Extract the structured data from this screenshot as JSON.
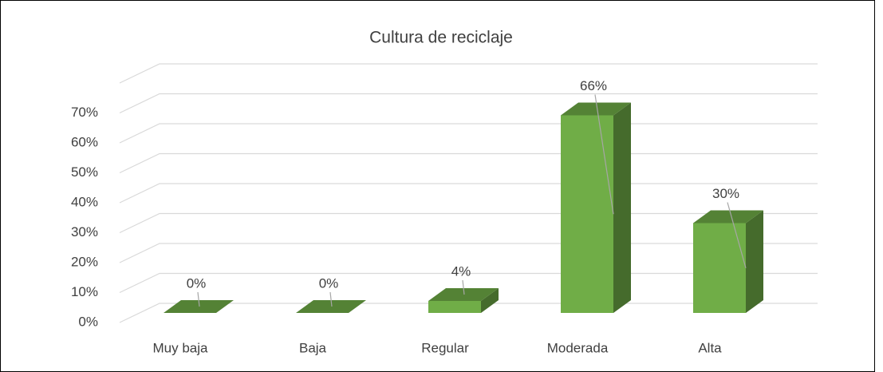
{
  "chart_data": {
    "type": "bar3d",
    "title": "Cultura de reciclaje",
    "categories": [
      "Muy baja",
      "Baja",
      "Regular",
      "Moderada",
      "Alta"
    ],
    "values": [
      0,
      0,
      4,
      66,
      30
    ],
    "value_labels": [
      "0%",
      "0%",
      "4%",
      "66%",
      "30%"
    ],
    "color": "#70ad47",
    "ylim": [
      0,
      80
    ],
    "yticks": [
      {
        "value": 0,
        "label": "0%"
      },
      {
        "value": 10,
        "label": "10%"
      },
      {
        "value": 20,
        "label": "20%"
      },
      {
        "value": 30,
        "label": "30%"
      },
      {
        "value": 40,
        "label": "40%"
      },
      {
        "value": 50,
        "label": "50%"
      },
      {
        "value": 60,
        "label": "60%"
      },
      {
        "value": 70,
        "label": "70%"
      }
    ],
    "grid": true
  }
}
